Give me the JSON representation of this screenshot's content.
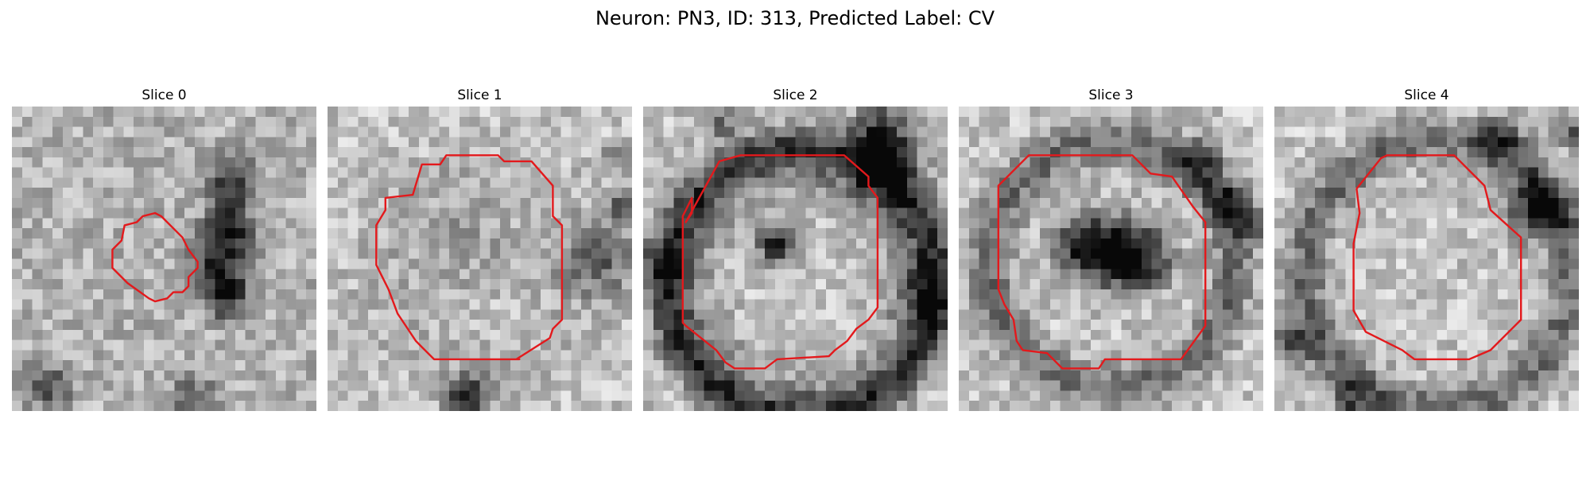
{
  "figure": {
    "title": "Neuron: PN3, ID: 313, Predicted Label: CV"
  },
  "panels": [
    {
      "title": "Slice 0"
    },
    {
      "title": "Slice 1"
    },
    {
      "title": "Slice 2"
    },
    {
      "title": "Slice 3"
    },
    {
      "title": "Slice 4"
    }
  ],
  "colors": {
    "contour": "#e3191c",
    "background": "#ffffff"
  }
}
